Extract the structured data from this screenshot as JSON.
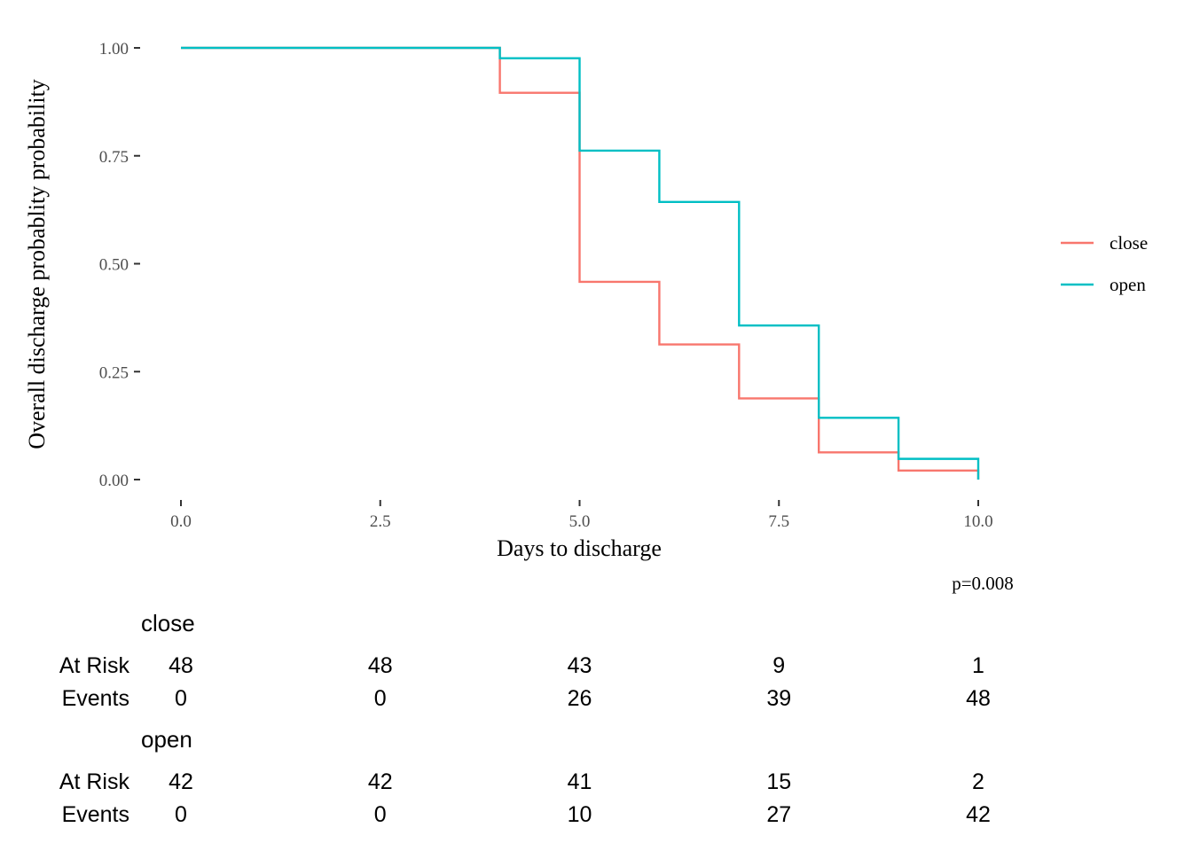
{
  "chart_data": {
    "type": "line",
    "subtype": "kaplan-meier-step",
    "title": "",
    "xlabel": "Days to discharge",
    "ylabel": "Overall discharge probablity probability",
    "xlim": [
      0,
      10
    ],
    "ylim": [
      0,
      1
    ],
    "x_ticks": [
      0,
      2.5,
      5,
      7.5,
      10
    ],
    "x_tick_labels": [
      "0.0",
      "2.5",
      "5.0",
      "7.5",
      "10.0"
    ],
    "y_ticks": [
      0,
      0.25,
      0.5,
      0.75,
      1
    ],
    "y_tick_labels": [
      "0.00",
      "0.25",
      "0.50",
      "0.75",
      "1.00"
    ],
    "grid": false,
    "legend_position": "right",
    "annotation": "p=0.008",
    "series": [
      {
        "name": "close",
        "color": "#F8766D",
        "steps": [
          [
            0,
            1.0
          ],
          [
            4,
            0.896
          ],
          [
            5,
            0.458
          ],
          [
            6,
            0.313
          ],
          [
            7,
            0.188
          ],
          [
            8,
            0.063
          ],
          [
            9,
            0.021
          ],
          [
            10,
            0.0
          ]
        ]
      },
      {
        "name": "open",
        "color": "#00BFC4",
        "steps": [
          [
            0,
            1.0
          ],
          [
            4,
            0.976
          ],
          [
            5,
            0.762
          ],
          [
            6,
            0.643
          ],
          [
            7,
            0.357
          ],
          [
            8,
            0.143
          ],
          [
            9,
            0.048
          ],
          [
            10,
            0.0
          ]
        ]
      }
    ],
    "risk_table": {
      "times": [
        0,
        2.5,
        5,
        7.5,
        10
      ],
      "row_labels": [
        "At Risk",
        "Events"
      ],
      "groups": [
        {
          "name": "close",
          "at_risk": [
            48,
            48,
            43,
            9,
            1
          ],
          "events": [
            0,
            0,
            26,
            39,
            48
          ]
        },
        {
          "name": "open",
          "at_risk": [
            42,
            42,
            41,
            15,
            2
          ],
          "events": [
            0,
            0,
            10,
            27,
            42
          ]
        }
      ]
    }
  }
}
